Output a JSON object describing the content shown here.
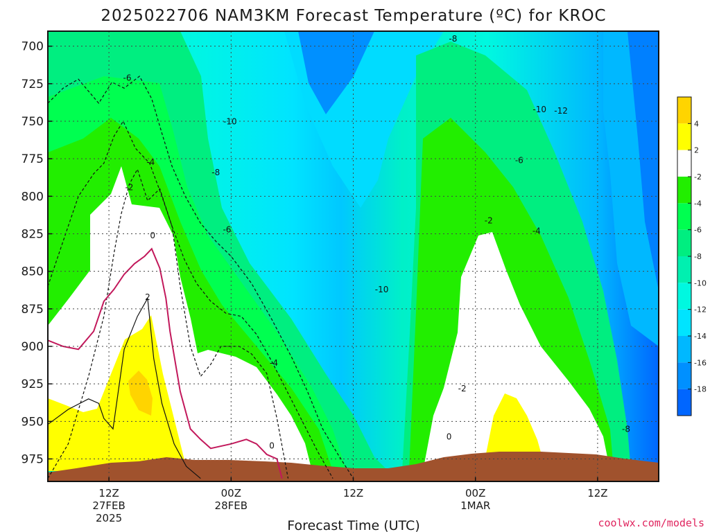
{
  "title": "2025022706 NAM3KM Forecast Temperature (ºC) for KROC",
  "credit": "coolwx.com/models",
  "chart_data": {
    "type": "heatmap",
    "title": "2025022706 NAM3KM Forecast Temperature (ºC) for KROC",
    "xlabel": "Forecast Time (UTC)",
    "ylabel": "",
    "x_ticks": [
      {
        "lines": [
          "12Z",
          "27FEB",
          "2025"
        ],
        "hour": 12
      },
      {
        "lines": [
          "00Z",
          "28FEB"
        ],
        "hour": 24
      },
      {
        "lines": [
          "12Z"
        ],
        "hour": 36
      },
      {
        "lines": [
          "00Z",
          "1MAR"
        ],
        "hour": 48
      },
      {
        "lines": [
          "12Z"
        ],
        "hour": 60
      }
    ],
    "xlim_hours": [
      6,
      66
    ],
    "y_ticks": [
      "700",
      "725",
      "750",
      "775",
      "800",
      "825",
      "850",
      "875",
      "900",
      "925",
      "950",
      "975"
    ],
    "ylim_hPa": [
      690,
      990
    ],
    "grid": true,
    "colorbar": {
      "placement": "right",
      "labels": [
        "4",
        "2",
        "-2",
        "-4",
        "-6",
        "-8",
        "-10",
        "-12",
        "-14",
        "-16",
        "-18"
      ],
      "colors": [
        "#ffd400",
        "#ffff00",
        "#ffffff",
        "#22ee00",
        "#00ff50",
        "#00ee80",
        "#00f0b0",
        "#00f8e0",
        "#00e4ff",
        "#00b8ff",
        "#0090ff",
        "#0066ff"
      ]
    },
    "terrain_color": "#a0522d",
    "contour_labels": [
      {
        "text": "-6",
        "hour": 13.8,
        "p": 723
      },
      {
        "text": "-2",
        "hour": 14.0,
        "p": 796
      },
      {
        "text": "-4",
        "hour": 16.1,
        "p": 779
      },
      {
        "text": "0",
        "hour": 16.3,
        "p": 828
      },
      {
        "text": "2",
        "hour": 15.8,
        "p": 869
      },
      {
        "text": "-10",
        "hour": 23.9,
        "p": 752
      },
      {
        "text": "-8",
        "hour": 22.5,
        "p": 786
      },
      {
        "text": "-6",
        "hour": 23.6,
        "p": 824
      },
      {
        "text": "-4",
        "hour": 28.2,
        "p": 913
      },
      {
        "text": "0",
        "hour": 28.0,
        "p": 968
      },
      {
        "text": "-10",
        "hour": 38.8,
        "p": 864
      },
      {
        "text": "-8",
        "hour": 45.8,
        "p": 697
      },
      {
        "text": "-2",
        "hour": 49.3,
        "p": 818
      },
      {
        "text": "-2",
        "hour": 46.7,
        "p": 930
      },
      {
        "text": "0",
        "hour": 45.4,
        "p": 962
      },
      {
        "text": "-6",
        "hour": 52.3,
        "p": 778
      },
      {
        "text": "-4",
        "hour": 54.0,
        "p": 825
      },
      {
        "text": "-10",
        "hour": 54.3,
        "p": 744
      },
      {
        "text": "-12",
        "hour": 56.4,
        "p": 745
      },
      {
        "text": "-8",
        "hour": 62.8,
        "p": 957
      }
    ],
    "series": [
      {
        "isotherm": "-2",
        "x_hours": [
          6,
          8,
          10,
          11.5,
          12.5,
          13.2,
          14,
          14.8,
          15.8,
          17,
          18.2,
          19,
          20,
          21,
          22,
          23,
          24.8,
          26,
          27.5,
          28.5,
          29.6
        ],
        "p": [
          988,
          965,
          920,
          880,
          838,
          812,
          792,
          782,
          803,
          795,
          820,
          860,
          900,
          920,
          912,
          900,
          900,
          905,
          918,
          948,
          988
        ]
      },
      {
        "isotherm": "0",
        "x_hours": [
          6,
          7.5,
          9,
          10.5,
          11.5,
          12.5,
          13.5,
          14.5,
          15.5,
          16.2,
          17,
          17.6,
          18,
          19,
          20,
          21,
          22,
          24,
          25.5,
          26.5,
          27.5,
          28.5,
          29
        ],
        "p": [
          896,
          900,
          902,
          890,
          870,
          862,
          852,
          845,
          840,
          835,
          848,
          868,
          890,
          930,
          955,
          962,
          968,
          965,
          962,
          965,
          972,
          975,
          988
        ]
      },
      {
        "isotherm": "2",
        "x_hours": [
          6,
          8,
          10,
          11,
          11.5,
          12.4,
          13.5,
          14.8,
          15.8,
          16.4,
          17.2,
          18.4,
          19.6,
          21
        ],
        "p": [
          952,
          942,
          935,
          938,
          948,
          955,
          902,
          880,
          868,
          908,
          938,
          965,
          980,
          988
        ]
      },
      {
        "isotherm": "-4",
        "x_hours": [
          6,
          7.5,
          9,
          10.5,
          11.5,
          12.5,
          13.4,
          14.6,
          16,
          17.2,
          18.2,
          19.4,
          20.6,
          22,
          23.5,
          25,
          26.5,
          28,
          29.5,
          31,
          32.5,
          34
        ],
        "p": [
          860,
          830,
          800,
          785,
          778,
          760,
          750,
          768,
          778,
          800,
          820,
          842,
          858,
          870,
          878,
          880,
          892,
          910,
          930,
          950,
          970,
          988
        ]
      },
      {
        "isotherm": "-6",
        "x_hours": [
          6,
          7.5,
          9,
          10,
          11,
          12.3,
          13.5,
          15,
          16.2,
          17.2,
          18.2,
          19.5,
          21,
          22.5,
          24,
          26,
          28,
          30,
          31.5,
          33,
          34.5,
          36
        ],
        "p": [
          738,
          728,
          722,
          730,
          738,
          724,
          728,
          720,
          735,
          758,
          780,
          800,
          818,
          830,
          840,
          858,
          882,
          908,
          930,
          955,
          972,
          988
        ]
      }
    ]
  }
}
